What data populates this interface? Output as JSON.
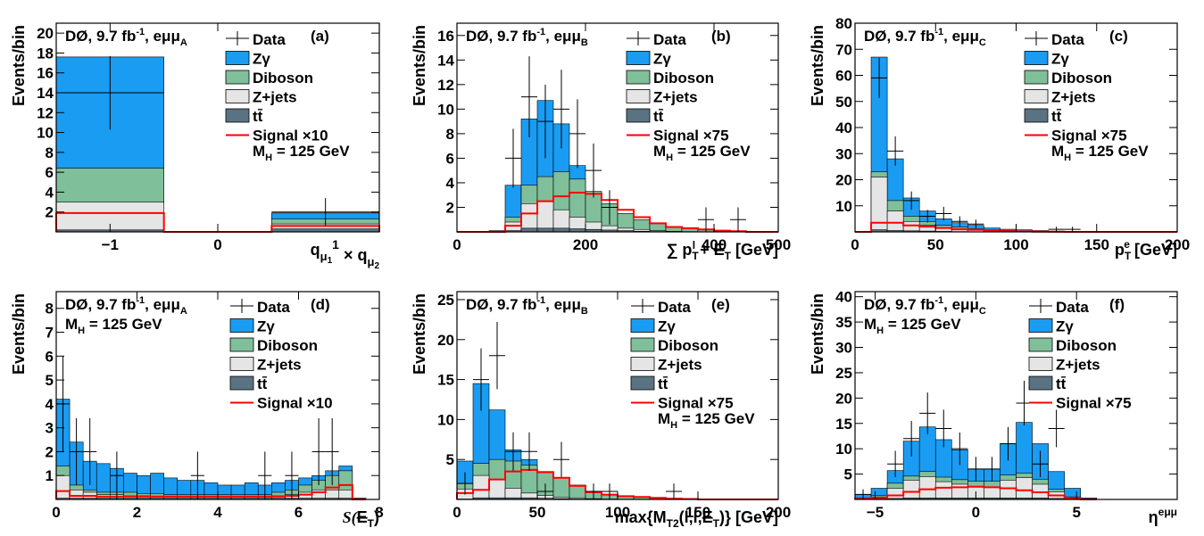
{
  "colors": {
    "zgamma": "#1a9cf2",
    "diboson": "#7fbf9a",
    "zjets": "#e5e5e5",
    "ttbar": "#5a7382",
    "signal": "#ff0000",
    "data": "#000000"
  },
  "legend_common": {
    "data": "Data",
    "zgamma": "Zγ",
    "diboson": "Diboson",
    "zjets": "Z+jets",
    "ttbar": "tt̄"
  },
  "chart_data": [
    {
      "id": "a",
      "type": "bar",
      "panel_label": "(a)",
      "experiment": "DØ, 9.7 fb",
      "lumi_sup": "-1",
      "channel": ", eμμ",
      "channel_sub": "A",
      "signal_label": "Signal ×10",
      "mass_label": "M",
      "mass_sub": "H",
      "mass_value": " = 125 GeV",
      "ylabel": "Events/bin",
      "xlabel": "q",
      "xlabel_parts": [
        "q",
        "μ",
        "1",
        "1",
        " × q",
        "μ",
        "2"
      ],
      "xlim": [
        -1.5,
        1.5
      ],
      "ylim": [
        0,
        21
      ],
      "xticks": [
        -1,
        0
      ],
      "yticks": [
        2,
        4,
        6,
        8,
        10,
        12,
        14,
        16,
        18,
        20
      ],
      "edges": [
        -1.5,
        -0.5,
        0.5,
        1.5
      ],
      "zgamma": [
        17.6,
        0,
        1.9
      ],
      "diboson": [
        6.4,
        0,
        1.3
      ],
      "zjets": [
        3.0,
        0,
        0.8
      ],
      "ttbar": [
        0.2,
        0,
        0.3
      ],
      "signal": [
        1.9,
        0,
        0.6
      ],
      "data_x": [
        -1,
        1
      ],
      "data_y": [
        14,
        2
      ],
      "data_err": [
        3.7,
        1.4
      ]
    },
    {
      "id": "b",
      "type": "bar",
      "panel_label": "(b)",
      "experiment": "DØ, 9.7 fb",
      "lumi_sup": "-1",
      "channel": ", eμμ",
      "channel_sub": "B",
      "signal_label": "Signal ×75",
      "mass_label": "M",
      "mass_sub": "H",
      "mass_value": " = 125 GeV",
      "ylabel": "Events/bin",
      "xlabel": "∑ p",
      "xlabel_parts": [
        "∑ p",
        "T",
        "l",
        " + ",
        "E",
        "T",
        " [GeV]"
      ],
      "xlim": [
        0,
        500
      ],
      "ylim": [
        0,
        17
      ],
      "xticks": [
        0,
        200,
        400,
        500
      ],
      "xticklabels": [
        "0",
        "200",
        "400",
        "500"
      ],
      "yticks": [
        2,
        4,
        6,
        8,
        10,
        12,
        14,
        16
      ],
      "edges": [
        0,
        25,
        50,
        75,
        100,
        125,
        150,
        175,
        200,
        225,
        250,
        275,
        300,
        325,
        350,
        375,
        400,
        425,
        450,
        475,
        500
      ],
      "zgamma": [
        0,
        0,
        0.1,
        3.8,
        9.2,
        10.7,
        8.8,
        5.4,
        3.2,
        1.8,
        1.2,
        0.7,
        0.5,
        0.3,
        0.2,
        0.15,
        0.1,
        0.05,
        0.03,
        0
      ],
      "diboson": [
        0,
        0,
        0.05,
        1.2,
        3.8,
        4.5,
        4.9,
        4.3,
        3.3,
        2.3,
        1.5,
        1.0,
        0.7,
        0.4,
        0.3,
        0.2,
        0.1,
        0.05,
        0.03,
        0
      ],
      "zjets": [
        0,
        0,
        0.02,
        0.8,
        2.3,
        2.5,
        1.8,
        1.2,
        0.8,
        0.5,
        0.3,
        0.2,
        0.1,
        0.05,
        0.02,
        0,
        0,
        0,
        0,
        0
      ],
      "ttbar": [
        0,
        0,
        0,
        0.1,
        0.3,
        0.3,
        0.3,
        0.25,
        0.2,
        0.15,
        0.1,
        0.05,
        0.03,
        0,
        0,
        0,
        0,
        0,
        0,
        0
      ],
      "signal": [
        0,
        0,
        0,
        0.5,
        1.5,
        2.5,
        2.9,
        3.2,
        3.1,
        2.6,
        1.8,
        1.2,
        0.7,
        0.4,
        0.3,
        0.2,
        0.1,
        0.05,
        0,
        0
      ],
      "data_x": [
        87.5,
        112.5,
        137.5,
        162.5,
        187.5,
        212.5,
        237.5,
        387.5,
        437.5
      ],
      "data_y": [
        6,
        11,
        9,
        10,
        8,
        5,
        2,
        1,
        1
      ],
      "data_err": [
        2.4,
        3.3,
        3.0,
        3.2,
        2.8,
        2.2,
        1.4,
        1.0,
        1.0
      ]
    },
    {
      "id": "c",
      "type": "bar",
      "panel_label": "(c)",
      "experiment": "DØ, 9.7 fb",
      "lumi_sup": "-1",
      "channel": ", eμμ",
      "channel_sub": "C",
      "signal_label": "Signal ×75",
      "mass_label": "M",
      "mass_sub": "H",
      "mass_value": " = 125 GeV",
      "ylabel": "Events/bin",
      "xlabel": "p",
      "xlabel_parts": [
        "p",
        "T",
        "e",
        " [GeV]"
      ],
      "xlim": [
        0,
        200
      ],
      "ylim": [
        0,
        80
      ],
      "xticks": [
        0,
        50,
        100,
        150,
        200
      ],
      "yticks": [
        10,
        20,
        30,
        40,
        50,
        60,
        70,
        80
      ],
      "edges": [
        0,
        10,
        20,
        30,
        40,
        50,
        60,
        70,
        80,
        90,
        100,
        110,
        120,
        130,
        140,
        150,
        160,
        170,
        180,
        190,
        200
      ],
      "zgamma": [
        0,
        67,
        28,
        13,
        8,
        5,
        3.5,
        2.5,
        1.5,
        1.0,
        0.8,
        0.5,
        0.3,
        0.2,
        0.1,
        0.05,
        0,
        0,
        0,
        0
      ],
      "diboson": [
        0,
        23,
        12,
        6,
        4,
        2.5,
        1.8,
        1.2,
        0.8,
        0.5,
        0.3,
        0.2,
        0.1,
        0.05,
        0,
        0,
        0,
        0,
        0,
        0
      ],
      "zjets": [
        0,
        21,
        8,
        4,
        2.5,
        1.5,
        1.0,
        0.6,
        0.3,
        0.2,
        0.1,
        0,
        0,
        0,
        0,
        0,
        0,
        0,
        0,
        0
      ],
      "ttbar": [
        0,
        0.8,
        0.5,
        0.4,
        0.3,
        0.2,
        0.1,
        0.05,
        0,
        0,
        0,
        0,
        0,
        0,
        0,
        0,
        0,
        0,
        0,
        0
      ],
      "signal": [
        0,
        3.5,
        3.5,
        2.5,
        2.0,
        1.5,
        1.0,
        0.8,
        0.5,
        0.3,
        0.2,
        0.1,
        0.05,
        0,
        0,
        0,
        0,
        0,
        0,
        0
      ],
      "data_x": [
        15,
        25,
        35,
        45,
        55,
        65,
        75,
        125,
        135
      ],
      "data_y": [
        59,
        31,
        12,
        6,
        7,
        4,
        3,
        1,
        1
      ],
      "data_err": [
        7.7,
        5.6,
        3.5,
        2.4,
        2.6,
        2.0,
        1.7,
        1.0,
        1.0
      ]
    },
    {
      "id": "d",
      "type": "bar",
      "panel_label": "(d)",
      "experiment": "DØ, 9.7 fb",
      "lumi_sup": "-1",
      "channel": ", eμμ",
      "channel_sub": "A",
      "signal_label": "Signal ×10",
      "mass_label": "M",
      "mass_sub": "H",
      "mass_value": " = 125 GeV",
      "ylabel": "Events/bin",
      "xlabel": "S(E",
      "xlabel_parts": [
        "S(",
        "E",
        "T",
        ")"
      ],
      "xlim": [
        0,
        8
      ],
      "ylim": [
        0,
        8.7
      ],
      "xticks": [
        0,
        2,
        4,
        6,
        8
      ],
      "yticks": [
        1,
        2,
        3,
        4,
        5,
        6,
        7,
        8
      ],
      "edges": [
        0,
        0.333,
        0.667,
        1.0,
        1.333,
        1.667,
        2.0,
        2.333,
        2.667,
        3.0,
        3.333,
        3.667,
        4.0,
        4.333,
        4.667,
        5.0,
        5.333,
        5.667,
        6.0,
        6.333,
        6.667,
        7.0,
        7.333,
        7.667
      ],
      "zgamma": [
        4.2,
        2.4,
        1.6,
        1.5,
        1.3,
        1.1,
        1.0,
        1.1,
        0.9,
        0.8,
        0.8,
        0.7,
        0.6,
        0.6,
        0.7,
        0.6,
        0.7,
        0.8,
        0.9,
        1.0,
        1.2,
        1.4,
        0.05
      ],
      "diboson": [
        1.4,
        0.6,
        0.4,
        0.3,
        0.3,
        0.3,
        0.25,
        0.25,
        0.2,
        0.2,
        0.2,
        0.2,
        0.2,
        0.2,
        0.2,
        0.2,
        0.3,
        0.4,
        0.6,
        0.8,
        1.0,
        1.2,
        0.05
      ],
      "zjets": [
        1.0,
        0.4,
        0.3,
        0.2,
        0.2,
        0.15,
        0.15,
        0.1,
        0.1,
        0.1,
        0.1,
        0.1,
        0.1,
        0.1,
        0.1,
        0.1,
        0.15,
        0.2,
        0.3,
        0.4,
        0.4,
        0.4,
        0
      ],
      "ttbar": [
        0.05,
        0.05,
        0.05,
        0.05,
        0.05,
        0.05,
        0.05,
        0.05,
        0.05,
        0.05,
        0.05,
        0.05,
        0.05,
        0.05,
        0.05,
        0.05,
        0.05,
        0.05,
        0.05,
        0.05,
        0.05,
        0.05,
        0
      ],
      "signal": [
        0.35,
        0.15,
        0.15,
        0.12,
        0.12,
        0.12,
        0.12,
        0.12,
        0.12,
        0.12,
        0.12,
        0.12,
        0.12,
        0.12,
        0.12,
        0.12,
        0.12,
        0.15,
        0.2,
        0.3,
        0.5,
        0.6,
        0
      ],
      "data_x": [
        0.167,
        0.5,
        0.833,
        1.5,
        3.5,
        5.167,
        5.833,
        6.5,
        6.833
      ],
      "data_y": [
        4,
        2,
        2,
        1,
        1,
        1,
        1,
        2,
        2
      ],
      "data_err": [
        2.0,
        1.4,
        1.4,
        1.0,
        1.0,
        1.0,
        1.0,
        1.4,
        1.4
      ]
    },
    {
      "id": "e",
      "type": "bar",
      "panel_label": "(e)",
      "experiment": "DØ, 9.7 fb",
      "lumi_sup": "-1",
      "channel": ", eμμ",
      "channel_sub": "B",
      "signal_label": "Signal ×75",
      "mass_label": "M",
      "mass_sub": "H",
      "mass_value": " = 125 GeV",
      "ylabel": "Events/bin",
      "xlabel": "max",
      "xlabel_parts": [
        "max",
        "{M",
        "T2",
        "(l,l,",
        "E",
        "T",
        ")}",
        " [GeV]"
      ],
      "xlim": [
        0,
        200
      ],
      "ylim": [
        0,
        26
      ],
      "xticks": [
        0,
        50,
        100,
        150,
        200
      ],
      "yticks": [
        5,
        10,
        15,
        20,
        25
      ],
      "edges": [
        0,
        10,
        20,
        30,
        40,
        50,
        60,
        70,
        80,
        90,
        100,
        110,
        120,
        130,
        140,
        150,
        160,
        170,
        180,
        190,
        200
      ],
      "zgamma": [
        4.8,
        14.5,
        11.2,
        6.2,
        5.0,
        3.2,
        2.2,
        1.5,
        1.0,
        0.6,
        0.4,
        0.3,
        0.2,
        0.1,
        0.05,
        0,
        0,
        0,
        0,
        0
      ],
      "diboson": [
        2.0,
        4.5,
        5.0,
        4.8,
        4.3,
        3.5,
        2.7,
        1.8,
        1.0,
        0.6,
        0.4,
        0.3,
        0.2,
        0.1,
        0.05,
        0,
        0,
        0,
        0,
        0
      ],
      "zjets": [
        1.3,
        3.0,
        2.5,
        1.4,
        0.8,
        0.5,
        0.3,
        0.2,
        0.1,
        0.05,
        0,
        0,
        0,
        0,
        0,
        0,
        0,
        0,
        0,
        0
      ],
      "ttbar": [
        0.05,
        0.2,
        0.2,
        0.2,
        0.2,
        0.15,
        0.1,
        0.05,
        0.05,
        0,
        0,
        0,
        0,
        0,
        0,
        0,
        0,
        0,
        0,
        0
      ],
      "signal": [
        0.8,
        1.2,
        2.5,
        3.5,
        3.7,
        3.4,
        2.7,
        1.7,
        0.9,
        0.6,
        0.4,
        0.3,
        0.2,
        0.1,
        0.05,
        0,
        0,
        0,
        0,
        0
      ],
      "data_x": [
        5,
        15,
        25,
        35,
        45,
        55,
        65,
        85,
        95,
        135
      ],
      "data_y": [
        2,
        15,
        18,
        6,
        6,
        1,
        5,
        1,
        1,
        1
      ],
      "data_err": [
        1.4,
        3.9,
        4.2,
        2.4,
        2.4,
        1.0,
        2.2,
        1.0,
        1.0,
        1.0
      ]
    },
    {
      "id": "f",
      "type": "bar",
      "panel_label": "(f)",
      "experiment": "DØ, 9.7 fb",
      "lumi_sup": "-1",
      "channel": ", eμμ",
      "channel_sub": "C",
      "signal_label": "Signal ×75",
      "mass_label": "M",
      "mass_sub": "H",
      "mass_value": " = 125 GeV",
      "ylabel": "Events/bin",
      "xlabel": "η",
      "xlabel_parts": [
        "η",
        "eμμ"
      ],
      "xlim": [
        -6,
        10
      ],
      "ylim": [
        0,
        41
      ],
      "xticks": [
        -5,
        0,
        5
      ],
      "yticks": [
        5,
        10,
        15,
        20,
        25,
        30,
        35,
        40
      ],
      "edges": [
        -6,
        -5.2,
        -4.4,
        -3.6,
        -2.8,
        -2.0,
        -1.2,
        -0.4,
        0.4,
        1.2,
        2.0,
        2.8,
        3.6,
        4.4,
        5.2,
        6.0
      ],
      "zgamma": [
        1.0,
        2.2,
        5.7,
        11.5,
        14.3,
        11.8,
        9.8,
        6.0,
        6.0,
        11.0,
        15.2,
        11.0,
        5.5,
        2.2,
        0.3
      ],
      "diboson": [
        0.3,
        0.8,
        3.2,
        4.6,
        5.5,
        4.4,
        3.9,
        3.6,
        3.6,
        4.8,
        5.2,
        4.0,
        2.0,
        0.5,
        0.1
      ],
      "zjets": [
        0.2,
        0.5,
        2.2,
        3.8,
        4.5,
        3.5,
        3.0,
        2.5,
        2.5,
        3.8,
        4.3,
        3.0,
        1.5,
        0.3,
        0
      ],
      "ttbar": [
        0.05,
        0.1,
        0.2,
        0.3,
        0.3,
        0.3,
        0.3,
        0.3,
        0.3,
        0.3,
        0.3,
        0.3,
        0.2,
        0.1,
        0
      ],
      "signal": [
        0.1,
        0.3,
        0.8,
        1.5,
        2.0,
        2.3,
        2.4,
        2.5,
        2.4,
        2.2,
        1.8,
        1.4,
        0.8,
        0.3,
        0
      ],
      "data_x": [
        -5.6,
        -4.0,
        -3.2,
        -2.4,
        -1.6,
        -0.8,
        0,
        0.8,
        1.6,
        2.4,
        3.2,
        4.0
      ],
      "data_y": [
        1,
        7,
        12,
        17,
        14,
        10,
        6,
        6,
        11,
        19,
        7,
        14
      ],
      "data_err": [
        1.0,
        2.6,
        3.5,
        4.1,
        3.7,
        3.2,
        2.4,
        2.4,
        3.3,
        4.4,
        2.6,
        3.7
      ]
    }
  ]
}
